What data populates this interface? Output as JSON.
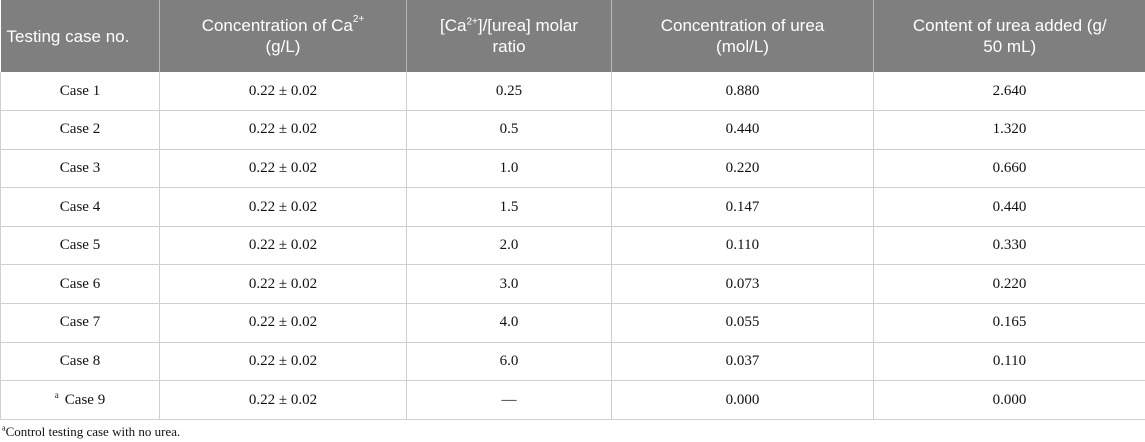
{
  "headers": {
    "col1": "Testing case no.",
    "col2_line1": "Concentration of Ca",
    "col2_sup": "2+",
    "col2_line2": "(g/L)",
    "col3_open": "[Ca",
    "col3_sup": "2+",
    "col3_rest": "]/[urea] molar",
    "col3_line2": "ratio",
    "col4_line1": "Concentration of urea",
    "col4_line2": "(mol/L)",
    "col5_line1": "Content of urea added (g/",
    "col5_line2": "50 mL)"
  },
  "rows": [
    {
      "case": "Case 1",
      "ca": "0.22 ± 0.02",
      "ratio": "0.25",
      "urea_conc": "0.880",
      "urea_content": "2.640"
    },
    {
      "case": "Case 2",
      "ca": "0.22 ± 0.02",
      "ratio": "0.5",
      "urea_conc": "0.440",
      "urea_content": "1.320"
    },
    {
      "case": "Case 3",
      "ca": "0.22 ± 0.02",
      "ratio": "1.0",
      "urea_conc": "0.220",
      "urea_content": "0.660"
    },
    {
      "case": "Case 4",
      "ca": "0.22 ± 0.02",
      "ratio": "1.5",
      "urea_conc": "0.147",
      "urea_content": "0.440"
    },
    {
      "case": "Case 5",
      "ca": "0.22 ± 0.02",
      "ratio": "2.0",
      "urea_conc": "0.110",
      "urea_content": "0.330"
    },
    {
      "case": "Case 6",
      "ca": "0.22 ± 0.02",
      "ratio": "3.0",
      "urea_conc": "0.073",
      "urea_content": "0.220"
    },
    {
      "case": "Case 7",
      "ca": "0.22 ± 0.02",
      "ratio": "4.0",
      "urea_conc": "0.055",
      "urea_content": "0.165"
    },
    {
      "case": "Case 8",
      "ca": "0.22 ± 0.02",
      "ratio": "6.0",
      "urea_conc": "0.037",
      "urea_content": "0.110"
    },
    {
      "case_mark": "a",
      "case": "Case 9",
      "ca": "0.22 ± 0.02",
      "ratio": "—",
      "urea_conc": "0.000",
      "urea_content": "0.000"
    }
  ],
  "footnote": {
    "mark": "a",
    "text": "Control testing case with no urea."
  },
  "colors": {
    "header_bg": "#7f7f7f",
    "header_text": "#ffffff",
    "grid": "#cfcfcf"
  }
}
